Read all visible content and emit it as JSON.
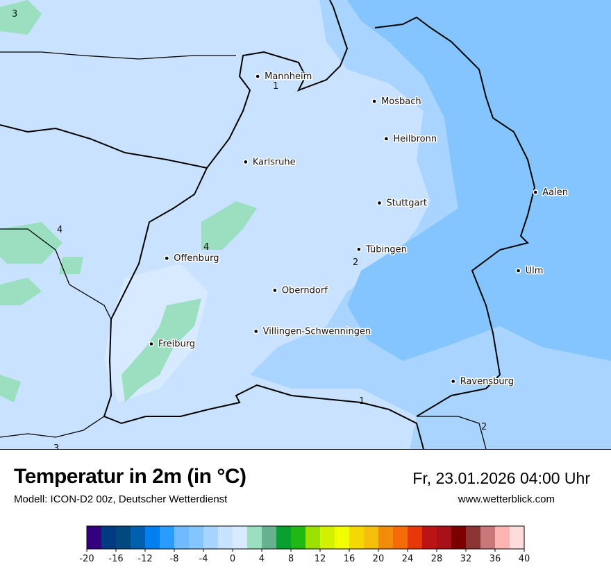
{
  "header": {
    "title": "Temperatur in 2m (in °C)",
    "subtitle": "Modell: ICON-D2 00z, Deutscher Wetterdienst",
    "datetime": "Fr, 23.01.2026 04:00 Uhr",
    "website": "www.wetterblick.com"
  },
  "map": {
    "cities": [
      {
        "name": "Mannheim",
        "lon": 8.47,
        "lat": 49.49
      },
      {
        "name": "Mosbach",
        "lon": 9.15,
        "lat": 49.35
      },
      {
        "name": "Heilbronn",
        "lon": 9.22,
        "lat": 49.14
      },
      {
        "name": "Karlsruhe",
        "lon": 8.4,
        "lat": 49.01
      },
      {
        "name": "Aalen",
        "lon": 10.09,
        "lat": 48.84
      },
      {
        "name": "Stuttgart",
        "lon": 9.18,
        "lat": 48.78
      },
      {
        "name": "Tübingen",
        "lon": 9.06,
        "lat": 48.52
      },
      {
        "name": "Offenburg",
        "lon": 7.94,
        "lat": 48.47
      },
      {
        "name": "Ulm",
        "lon": 9.99,
        "lat": 48.4
      },
      {
        "name": "Oberndorf",
        "lon": 8.57,
        "lat": 48.29
      },
      {
        "name": "Villingen-Schwenningen",
        "lon": 8.46,
        "lat": 48.06
      },
      {
        "name": "Freiburg",
        "lon": 7.85,
        "lat": 47.99
      },
      {
        "name": "Ravensburg",
        "lon": 9.61,
        "lat": 47.78
      }
    ],
    "contour_labels": [
      "3",
      "1",
      "4",
      "4",
      "2",
      "1",
      "2",
      "3"
    ],
    "background_colors": {
      "west": "#c8e2ff",
      "east": "#84c5ff",
      "warm_patches": "#99dfc0",
      "border": "#000000"
    }
  },
  "legend": {
    "min": -20,
    "max": 40,
    "step": 2,
    "tick_labels": [
      "-20",
      "-16",
      "-12",
      "-8",
      "-4",
      "0",
      "4",
      "8",
      "12",
      "16",
      "20",
      "24",
      "28",
      "32",
      "36",
      "40"
    ],
    "colors": [
      "#330080",
      "#003a80",
      "#004a7f",
      "#0060b0",
      "#0080f0",
      "#2a9cff",
      "#70bbff",
      "#84c5ff",
      "#a8d4ff",
      "#c8e2ff",
      "#d8eaff",
      "#99dfc0",
      "#66b28e",
      "#06a12e",
      "#20b812",
      "#9ae000",
      "#d2f000",
      "#f2ff00",
      "#f5d800",
      "#f4be0a",
      "#f28a0a",
      "#f46c0a",
      "#e8380a",
      "#bc1414",
      "#a8101a",
      "#7c0000",
      "#8a3434",
      "#c87878",
      "#ffb4b4",
      "#ffdcdc"
    ]
  }
}
